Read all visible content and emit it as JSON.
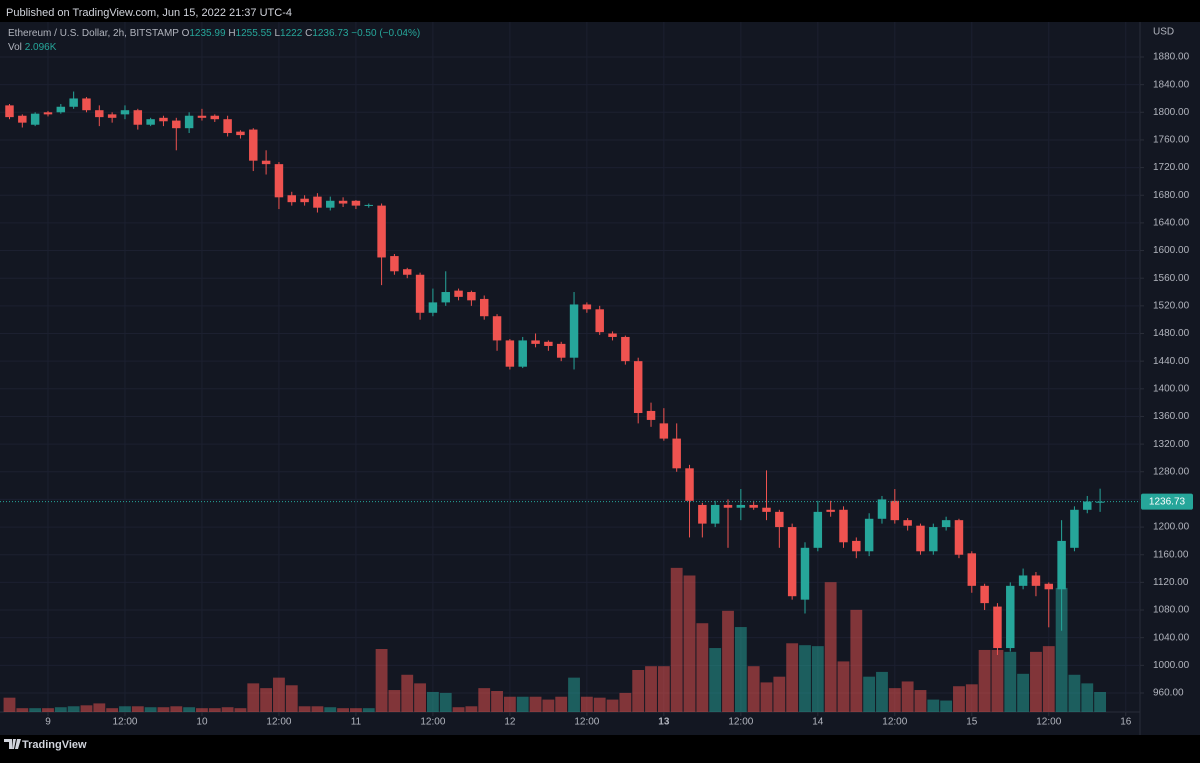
{
  "chart_data": {
    "type": "candlestick",
    "published": "Published on TradingView.com, Jun 15, 2022 21:37 UTC-4",
    "title": "Ethereum / U.S. Dollar, 2h, BITSTAMP",
    "legend_labels": {
      "open": "O",
      "high": "H",
      "low": "L",
      "close": "C"
    },
    "change": "−0.50 (−0.04%)",
    "currency": "USD",
    "brand": "TradingView",
    "up_color": "#26a69a",
    "down_color": "#ef5350",
    "grid": true,
    "last_price_line": true,
    "open": [
      1810,
      1795,
      1782,
      1800,
      1800,
      1808,
      1820,
      1803,
      1797,
      1797,
      1803,
      1782,
      1792,
      1788,
      1777,
      1795,
      1795,
      1790,
      1772,
      1775,
      1730,
      1725,
      1680,
      1675,
      1678,
      1662,
      1672,
      1672,
      1665,
      1665,
      1592,
      1573,
      1565,
      1510,
      1525,
      1542,
      1540,
      1530,
      1505,
      1470,
      1432,
      1470,
      1468,
      1465,
      1445,
      1522,
      1515,
      1480,
      1475,
      1440,
      1368,
      1350,
      1328,
      1285,
      1232,
      1205,
      1232,
      1228,
      1232,
      1228,
      1222,
      1200,
      1095,
      1170,
      1225,
      1225,
      1180,
      1165,
      1212,
      1238,
      1210,
      1202,
      1165,
      1200,
      1210,
      1162,
      1115,
      1085,
      1025,
      1115,
      1130,
      1118,
      1110,
      1170,
      1225,
      1235.99
    ],
    "high": [
      1812,
      1797,
      1800,
      1802,
      1812,
      1830,
      1822,
      1810,
      1800,
      1810,
      1805,
      1792,
      1795,
      1792,
      1800,
      1805,
      1797,
      1795,
      1774,
      1777,
      1745,
      1728,
      1685,
      1680,
      1683,
      1678,
      1677,
      1673,
      1668,
      1668,
      1595,
      1575,
      1568,
      1545,
      1570,
      1545,
      1542,
      1535,
      1508,
      1472,
      1475,
      1480,
      1470,
      1468,
      1540,
      1525,
      1520,
      1483,
      1477,
      1445,
      1380,
      1372,
      1350,
      1290,
      1235,
      1238,
      1240,
      1255,
      1238,
      1282,
      1225,
      1205,
      1178,
      1238,
      1238,
      1230,
      1185,
      1220,
      1245,
      1255,
      1213,
      1205,
      1205,
      1215,
      1212,
      1165,
      1118,
      1090,
      1120,
      1140,
      1135,
      1120,
      1210,
      1230,
      1245,
      1255.55
    ],
    "low": [
      1790,
      1778,
      1780,
      1794,
      1798,
      1805,
      1800,
      1780,
      1785,
      1790,
      1775,
      1780,
      1780,
      1745,
      1770,
      1788,
      1786,
      1765,
      1762,
      1715,
      1710,
      1660,
      1665,
      1665,
      1655,
      1658,
      1663,
      1660,
      1662,
      1550,
      1565,
      1560,
      1500,
      1505,
      1520,
      1528,
      1520,
      1500,
      1455,
      1428,
      1430,
      1460,
      1455,
      1440,
      1428,
      1510,
      1478,
      1470,
      1435,
      1350,
      1345,
      1325,
      1280,
      1185,
      1185,
      1200,
      1170,
      1210,
      1225,
      1210,
      1170,
      1095,
      1075,
      1165,
      1215,
      1170,
      1155,
      1158,
      1205,
      1205,
      1195,
      1160,
      1160,
      1195,
      1155,
      1105,
      1080,
      1015,
      1020,
      1110,
      1100,
      1055,
      1050,
      1165,
      1220,
      1222.0
    ],
    "close": [
      1793,
      1785,
      1798,
      1797,
      1808,
      1820,
      1803,
      1793,
      1792,
      1803,
      1782,
      1790,
      1787,
      1777,
      1795,
      1792,
      1790,
      1770,
      1767,
      1730,
      1725,
      1677,
      1670,
      1670,
      1662,
      1672,
      1668,
      1665,
      1666,
      1590,
      1570,
      1565,
      1510,
      1525,
      1540,
      1533,
      1528,
      1505,
      1470,
      1432,
      1470,
      1465,
      1462,
      1445,
      1522,
      1515,
      1482,
      1475,
      1440,
      1365,
      1355,
      1328,
      1285,
      1238,
      1205,
      1232,
      1228,
      1232,
      1228,
      1222,
      1200,
      1100,
      1170,
      1222,
      1222,
      1178,
      1165,
      1212,
      1240,
      1210,
      1202,
      1165,
      1200,
      1210,
      1160,
      1115,
      1090,
      1025,
      1115,
      1130,
      1115,
      1110,
      1180,
      1225,
      1237,
      1236.73
    ],
    "volume": {
      "name": "Vol",
      "last_label": "2.096K",
      "values": [
        1.5,
        0.4,
        0.4,
        0.4,
        0.5,
        0.6,
        0.7,
        0.9,
        0.4,
        0.6,
        0.6,
        0.5,
        0.5,
        0.6,
        0.5,
        0.4,
        0.4,
        0.5,
        0.4,
        3.0,
        2.5,
        3.6,
        2.8,
        0.6,
        0.6,
        0.5,
        0.4,
        0.4,
        0.4,
        6.6,
        2.3,
        3.9,
        3.0,
        2.1,
        2.0,
        0.5,
        0.6,
        2.5,
        2.2,
        1.6,
        1.6,
        1.6,
        1.3,
        1.6,
        3.6,
        1.6,
        1.5,
        1.3,
        2.0,
        4.4,
        4.8,
        4.8,
        15.1,
        14.3,
        9.3,
        6.7,
        10.6,
        8.9,
        4.8,
        3.1,
        3.7,
        7.2,
        7.0,
        6.9,
        13.6,
        5.3,
        10.7,
        3.7,
        4.2,
        2.5,
        3.2,
        2.3,
        1.3,
        1.2,
        2.7,
        2.9,
        6.5,
        6.5,
        6.3,
        4.0,
        6.3,
        6.9,
        13.0,
        3.9,
        3.0,
        2.096
      ]
    },
    "ylim": [
      932.5,
      1930.6
    ],
    "vlim": [
      0,
      22
    ],
    "xlim": [
      -0.74,
      88.11
    ],
    "yticks": [
      {
        "value": 960,
        "label": "960.00"
      },
      {
        "value": 1000,
        "label": "1000.00"
      },
      {
        "value": 1040,
        "label": "1040.00"
      },
      {
        "value": 1080,
        "label": "1080.00"
      },
      {
        "value": 1120,
        "label": "1120.00"
      },
      {
        "value": 1160,
        "label": "1160.00"
      },
      {
        "value": 1200,
        "label": "1200.00"
      },
      {
        "value": 1240,
        "label": "1240.00"
      },
      {
        "value": 1280,
        "label": "1280.00"
      },
      {
        "value": 1320,
        "label": "1320.00"
      },
      {
        "value": 1360,
        "label": "1360.00"
      },
      {
        "value": 1400,
        "label": "1400.00"
      },
      {
        "value": 1440,
        "label": "1440.00"
      },
      {
        "value": 1480,
        "label": "1480.00"
      },
      {
        "value": 1520,
        "label": "1520.00"
      },
      {
        "value": 1560,
        "label": "1560.00"
      },
      {
        "value": 1600,
        "label": "1600.00"
      },
      {
        "value": 1640,
        "label": "1640.00"
      },
      {
        "value": 1680,
        "label": "1680.00"
      },
      {
        "value": 1720,
        "label": "1720.00"
      },
      {
        "value": 1760,
        "label": "1760.00"
      },
      {
        "value": 1800,
        "label": "1800.00"
      },
      {
        "value": 1840,
        "label": "1840.00"
      },
      {
        "value": 1880,
        "label": "1880.00"
      }
    ],
    "xticks": [
      {
        "value": 3,
        "label": "9"
      },
      {
        "value": 9,
        "label": "12:00"
      },
      {
        "value": 15,
        "label": "10"
      },
      {
        "value": 21,
        "label": "12:00"
      },
      {
        "value": 27,
        "label": "11"
      },
      {
        "value": 33,
        "label": "12:00"
      },
      {
        "value": 39,
        "label": "12"
      },
      {
        "value": 45,
        "label": "12:00"
      },
      {
        "value": 51,
        "label": "13"
      },
      {
        "value": 57,
        "label": "12:00"
      },
      {
        "value": 63,
        "label": "14"
      },
      {
        "value": 69,
        "label": "12:00"
      },
      {
        "value": 75,
        "label": "15"
      },
      {
        "value": 81,
        "label": "12:00"
      },
      {
        "value": 87,
        "label": "16"
      }
    ]
  }
}
